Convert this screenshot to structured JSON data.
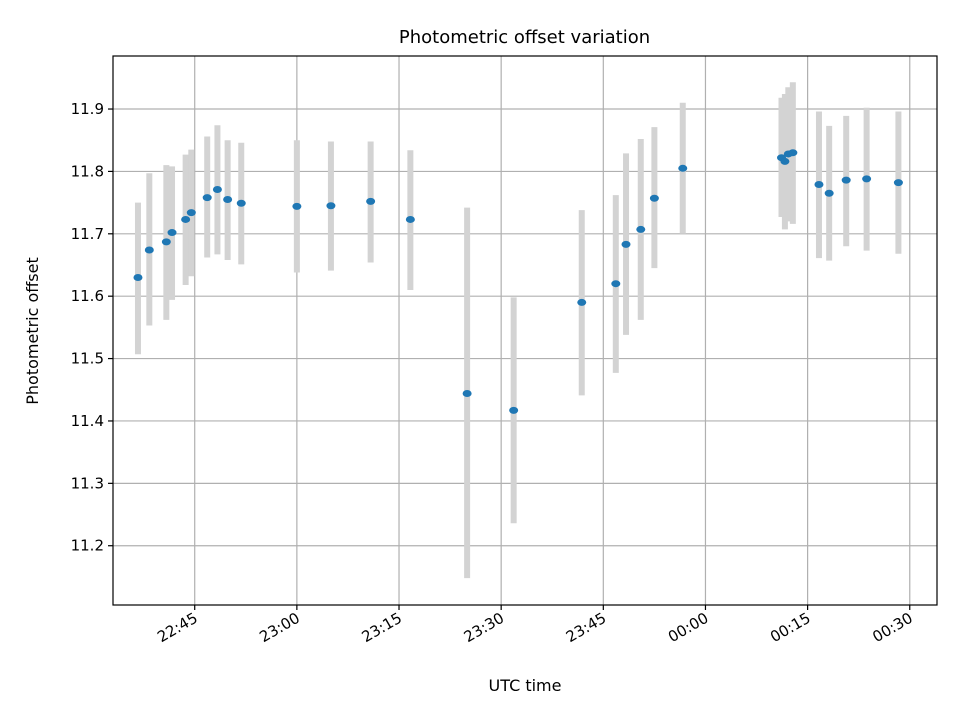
{
  "chart_data": {
    "type": "scatter",
    "title": "Photometric offset variation",
    "xlabel": "UTC time",
    "ylabel": "Photometric offset",
    "grid": true,
    "legend": false,
    "xlim": [
      "22:33",
      "00:34"
    ],
    "ylim": [
      11.105,
      11.985
    ],
    "x_ticks": [
      "22:45",
      "23:00",
      "23:15",
      "23:30",
      "23:45",
      "00:00",
      "00:15",
      "00:30"
    ],
    "y_ticks": [
      "11.2",
      "11.3",
      "11.4",
      "11.5",
      "11.6",
      "11.7",
      "11.8",
      "11.9"
    ],
    "marker_color": "#1f77b4",
    "errorbar_color": "#d3d3d3",
    "points": [
      {
        "x": "22:36:40",
        "y": 11.63,
        "ylow": 11.507,
        "yhigh": 11.75
      },
      {
        "x": "22:38:20",
        "y": 11.674,
        "ylow": 11.553,
        "yhigh": 11.797
      },
      {
        "x": "22:40:50",
        "y": 11.687,
        "ylow": 11.562,
        "yhigh": 11.81
      },
      {
        "x": "22:41:40",
        "y": 11.702,
        "ylow": 11.594,
        "yhigh": 11.808
      },
      {
        "x": "22:43:40",
        "y": 11.723,
        "ylow": 11.618,
        "yhigh": 11.827
      },
      {
        "x": "22:44:30",
        "y": 11.734,
        "ylow": 11.632,
        "yhigh": 11.835
      },
      {
        "x": "22:46:50",
        "y": 11.758,
        "ylow": 11.662,
        "yhigh": 11.856
      },
      {
        "x": "22:48:20",
        "y": 11.771,
        "ylow": 11.667,
        "yhigh": 11.874
      },
      {
        "x": "22:49:50",
        "y": 11.755,
        "ylow": 11.658,
        "yhigh": 11.85
      },
      {
        "x": "22:51:50",
        "y": 11.749,
        "ylow": 11.651,
        "yhigh": 11.846
      },
      {
        "x": "23:00:00",
        "y": 11.744,
        "ylow": 11.638,
        "yhigh": 11.85
      },
      {
        "x": "23:05:00",
        "y": 11.745,
        "ylow": 11.641,
        "yhigh": 11.848
      },
      {
        "x": "23:10:50",
        "y": 11.752,
        "ylow": 11.654,
        "yhigh": 11.848
      },
      {
        "x": "23:16:40",
        "y": 11.723,
        "ylow": 11.61,
        "yhigh": 11.834
      },
      {
        "x": "23:25:00",
        "y": 11.444,
        "ylow": 11.148,
        "yhigh": 11.742
      },
      {
        "x": "23:31:50",
        "y": 11.417,
        "ylow": 11.236,
        "yhigh": 11.598
      },
      {
        "x": "23:41:50",
        "y": 11.59,
        "ylow": 11.441,
        "yhigh": 11.738
      },
      {
        "x": "23:46:50",
        "y": 11.62,
        "ylow": 11.477,
        "yhigh": 11.762
      },
      {
        "x": "23:48:20",
        "y": 11.683,
        "ylow": 11.538,
        "yhigh": 11.829
      },
      {
        "x": "23:50:30",
        "y": 11.707,
        "ylow": 11.562,
        "yhigh": 11.852
      },
      {
        "x": "23:52:30",
        "y": 11.757,
        "ylow": 11.645,
        "yhigh": 11.871
      },
      {
        "x": "23:56:40",
        "y": 11.805,
        "ylow": 11.7,
        "yhigh": 11.91
      },
      {
        "x": "00:11:10",
        "y": 11.822,
        "ylow": 11.727,
        "yhigh": 11.918
      },
      {
        "x": "00:11:40",
        "y": 11.816,
        "ylow": 11.707,
        "yhigh": 11.924
      },
      {
        "x": "00:12:10",
        "y": 11.828,
        "ylow": 11.72,
        "yhigh": 11.935
      },
      {
        "x": "00:12:50",
        "y": 11.83,
        "ylow": 11.716,
        "yhigh": 11.943
      },
      {
        "x": "00:16:40",
        "y": 11.779,
        "ylow": 11.661,
        "yhigh": 11.896
      },
      {
        "x": "00:18:10",
        "y": 11.765,
        "ylow": 11.657,
        "yhigh": 11.873
      },
      {
        "x": "00:20:40",
        "y": 11.786,
        "ylow": 11.68,
        "yhigh": 11.889
      },
      {
        "x": "00:23:40",
        "y": 11.788,
        "ylow": 11.673,
        "yhigh": 11.902
      },
      {
        "x": "00:28:20",
        "y": 11.782,
        "ylow": 11.668,
        "yhigh": 11.896
      }
    ]
  }
}
